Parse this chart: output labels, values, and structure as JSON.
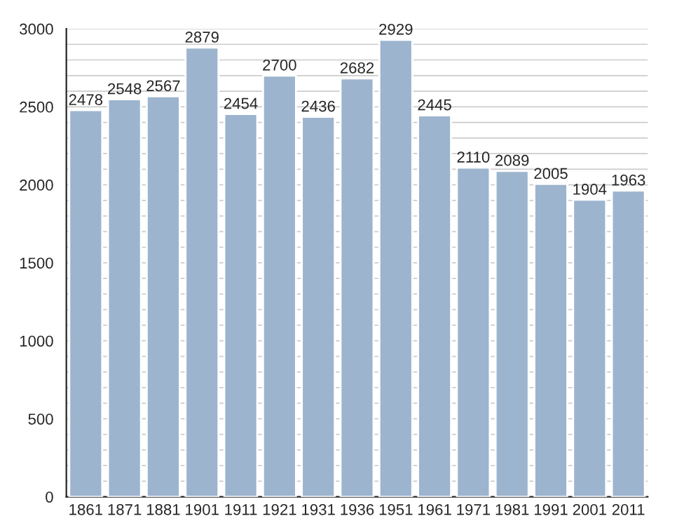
{
  "chart_data": {
    "type": "bar",
    "categories": [
      "1861",
      "1871",
      "1881",
      "1901",
      "1911",
      "1921",
      "1931",
      "1936",
      "1951",
      "1961",
      "1971",
      "1981",
      "1991",
      "2001",
      "2011"
    ],
    "values": [
      2478,
      2548,
      2567,
      2879,
      2454,
      2700,
      2436,
      2682,
      2929,
      2445,
      2110,
      2089,
      2005,
      1904,
      1963
    ],
    "color": "#9db4cf",
    "ylim": [
      0,
      3000
    ],
    "yticks": [
      0,
      {
        "value": 100,
        "label": null
      },
      {
        "value": 200,
        "label": null
      },
      {
        "value": 300,
        "label": null
      },
      {
        "value": 400,
        "label": null
      },
      500,
      {
        "value": 600,
        "label": null
      },
      {
        "value": 700,
        "label": null
      },
      {
        "value": 800,
        "label": null
      },
      {
        "value": 900,
        "label": null
      },
      1000,
      {
        "value": 1100,
        "label": null
      },
      {
        "value": 1200,
        "label": null
      },
      {
        "value": 1300,
        "label": null
      },
      {
        "value": 1400,
        "label": null
      },
      1500,
      {
        "value": 1600,
        "label": null
      },
      {
        "value": 1700,
        "label": null
      },
      {
        "value": 1800,
        "label": null
      },
      {
        "value": 1900,
        "label": null
      },
      2000,
      {
        "value": 2100,
        "label": null
      },
      {
        "value": 2200,
        "label": null
      },
      {
        "value": 2300,
        "label": null
      },
      {
        "value": 2400,
        "label": null
      },
      2500,
      {
        "value": 2600,
        "label": null
      },
      {
        "value": 2700,
        "label": null
      },
      {
        "value": 2800,
        "label": null
      },
      {
        "value": 2900,
        "label": null
      },
      3000
    ],
    "grid": "y",
    "data_labels": true
  }
}
